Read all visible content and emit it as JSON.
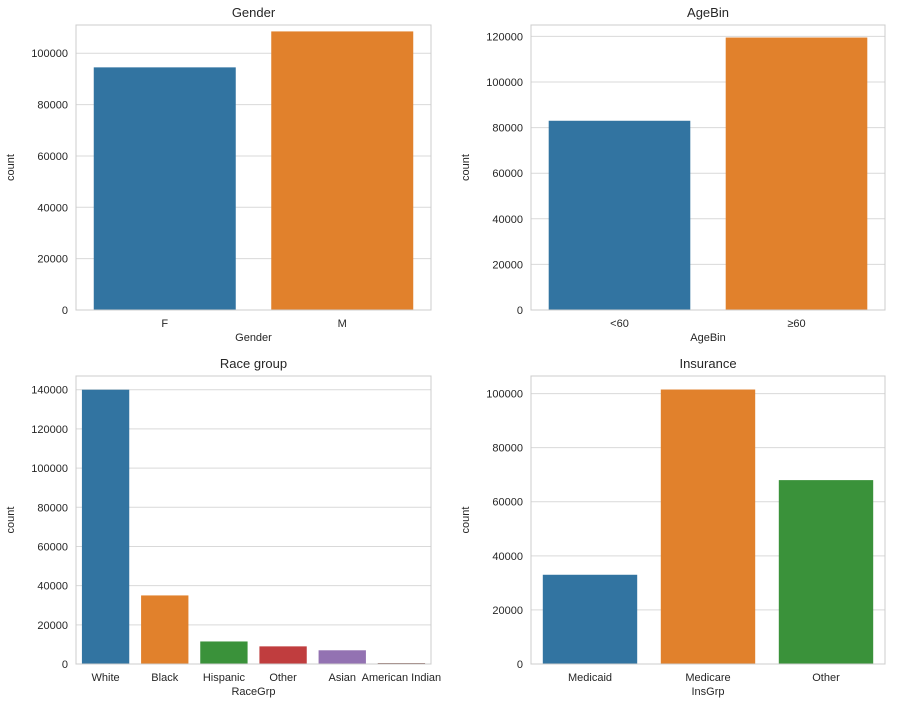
{
  "palette": [
    "#3274a1",
    "#e1812c",
    "#3a923a",
    "#c03d3e",
    "#9372b2",
    "#845b53"
  ],
  "chart_data": [
    {
      "type": "bar",
      "title": "Gender",
      "xlabel": "Gender",
      "ylabel": "count",
      "categories": [
        "F",
        "M"
      ],
      "values": [
        94500,
        108500
      ],
      "ylim": [
        0,
        111000
      ],
      "yticks": [
        0,
        20000,
        40000,
        60000,
        80000,
        100000
      ],
      "ytick_labels": [
        "0",
        "20000",
        "40000",
        "60000",
        "80000",
        "100000"
      ],
      "grid": true
    },
    {
      "type": "bar",
      "title": "AgeBin",
      "xlabel": "AgeBin",
      "ylabel": "count",
      "categories": [
        "<60",
        "≥60"
      ],
      "values": [
        83000,
        119500
      ],
      "ylim": [
        0,
        125000
      ],
      "yticks": [
        0,
        20000,
        40000,
        60000,
        80000,
        100000,
        120000
      ],
      "ytick_labels": [
        "0",
        "20000",
        "40000",
        "60000",
        "80000",
        "100000",
        "120000"
      ],
      "grid": true
    },
    {
      "type": "bar",
      "title": "Race group",
      "xlabel": "RaceGrp",
      "ylabel": "count",
      "categories": [
        "White",
        "Black",
        "Hispanic",
        "Other",
        "Asian",
        "American Indian"
      ],
      "values": [
        140000,
        35000,
        11500,
        9000,
        7000,
        500
      ],
      "ylim": [
        0,
        147000
      ],
      "yticks": [
        0,
        20000,
        40000,
        60000,
        80000,
        100000,
        120000,
        140000
      ],
      "ytick_labels": [
        "0",
        "20000",
        "40000",
        "60000",
        "80000",
        "100000",
        "120000",
        "140000"
      ],
      "grid": true
    },
    {
      "type": "bar",
      "title": "Insurance",
      "xlabel": "InsGrp",
      "ylabel": "count",
      "categories": [
        "Medicaid",
        "Medicare",
        "Other"
      ],
      "values": [
        33000,
        101500,
        68000
      ],
      "ylim": [
        0,
        106500
      ],
      "yticks": [
        0,
        20000,
        40000,
        60000,
        80000,
        100000
      ],
      "ytick_labels": [
        "0",
        "20000",
        "40000",
        "60000",
        "80000",
        "100000"
      ],
      "grid": true
    }
  ]
}
